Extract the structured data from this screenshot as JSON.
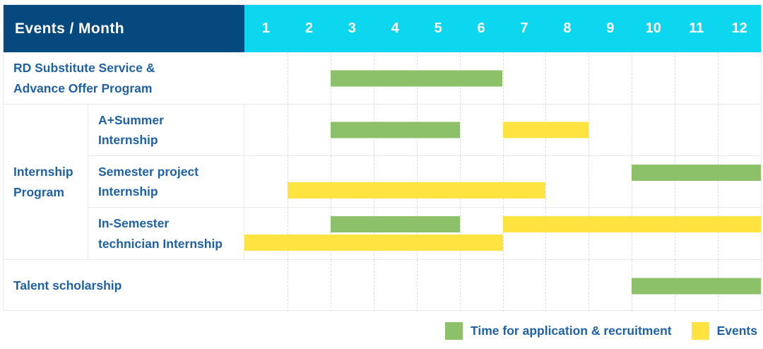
{
  "header": {
    "title": "Events / Month",
    "months": [
      "1",
      "2",
      "3",
      "4",
      "5",
      "6",
      "7",
      "8",
      "9",
      "10",
      "11",
      "12"
    ]
  },
  "group": {
    "label": "Internship\nProgram"
  },
  "rows": [
    {
      "label": "RD Substitute Service &\nAdvance Offer Program"
    },
    {
      "label": "A+Summer\nInternship"
    },
    {
      "label": "Semester project\nInternship"
    },
    {
      "label": "In-Semester\ntechnician Internship"
    },
    {
      "label": "Talent scholarship"
    }
  ],
  "legend": [
    {
      "label": "Time for application & recruitment",
      "kind": "application"
    },
    {
      "label": "Events",
      "kind": "event"
    }
  ],
  "colors": {
    "header_bg": "#05497e",
    "months_bg": "#0cd7ee",
    "application": "#8cc16a",
    "event": "#ffe441",
    "label_text": "#1e61a7",
    "header_text": "#ffffff",
    "grid_border": "#e8e8ee",
    "month_line": "#dcdce4"
  },
  "chart_data": {
    "type": "bar",
    "subtype": "gantt-schedule",
    "title": "Events / Month",
    "x_axis": {
      "label": "Month",
      "ticks": [
        1,
        2,
        3,
        4,
        5,
        6,
        7,
        8,
        9,
        10,
        11,
        12
      ],
      "range": [
        1,
        13
      ],
      "grid": "dashed-vertical"
    },
    "legend_entries": [
      "Time for application & recruitment",
      "Events"
    ],
    "legend_position": "bottom-right",
    "bar_convention": "start/end are month positions; end is exclusive (end=7 means bar runs through the end of month 6)",
    "rows": [
      {
        "name": "RD Substitute Service & Advance Offer Program",
        "bars": [
          {
            "kind": "application",
            "start": 3,
            "end": 7,
            "lane": "center"
          }
        ]
      },
      {
        "name": "A+Summer Internship",
        "group": "Internship Program",
        "bars": [
          {
            "kind": "application",
            "start": 3,
            "end": 6,
            "lane": "center"
          },
          {
            "kind": "event",
            "start": 7,
            "end": 9,
            "lane": "center"
          }
        ]
      },
      {
        "name": "Semester project Internship",
        "group": "Internship Program",
        "bars": [
          {
            "kind": "application",
            "start": 10,
            "end": 13,
            "lane": "top"
          },
          {
            "kind": "event",
            "start": 2,
            "end": 8,
            "lane": "bottom"
          }
        ]
      },
      {
        "name": "In-Semester technician Internship",
        "group": "Internship Program",
        "bars": [
          {
            "kind": "application",
            "start": 3,
            "end": 6,
            "lane": "top"
          },
          {
            "kind": "event",
            "start": 7,
            "end": 13,
            "lane": "top"
          },
          {
            "kind": "event",
            "start": 1,
            "end": 7,
            "lane": "bottom"
          }
        ]
      },
      {
        "name": "Talent scholarship",
        "bars": [
          {
            "kind": "application",
            "start": 10,
            "end": 13,
            "lane": "center"
          }
        ]
      }
    ]
  }
}
